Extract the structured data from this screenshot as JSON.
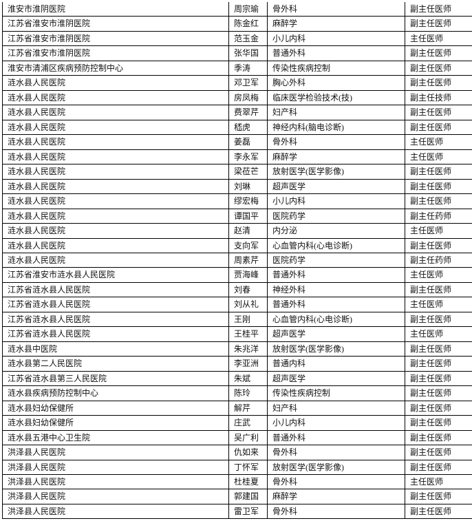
{
  "table": {
    "rows": [
      [
        "淮安市淮阴医院",
        "周宗瑜",
        "骨外科",
        "副主任医师"
      ],
      [
        "江苏省淮安市淮阴医院",
        "陈金红",
        "麻醉学",
        "副主任医师"
      ],
      [
        "江苏省淮安市淮阴医院",
        "范玉金",
        "小儿内科",
        "主任医师"
      ],
      [
        "江苏省淮安市淮阴医院",
        "张华国",
        "普通外科",
        "副主任医师"
      ],
      [
        "淮安市清浦区疾病预防控制中心",
        "季涛",
        "传染性疾病控制",
        "副主任医师"
      ],
      [
        "涟水县人民医院",
        "邓卫军",
        "胸心外科",
        "副主任医师"
      ],
      [
        "涟水县人民医院",
        "房凤梅",
        "临床医学检验技术(技)",
        "副主任技师"
      ],
      [
        "涟水县人民医院",
        "费翠芹",
        "妇产科",
        "副主任医师"
      ],
      [
        "涟水县人民医院",
        "嵇虎",
        "神经内科(脑电诊断)",
        "副主任医师"
      ],
      [
        "涟水县人民医院",
        "姜磊",
        "骨外科",
        "主任医师"
      ],
      [
        "涟水县人民医院",
        "李永军",
        "麻醉学",
        "主任医师"
      ],
      [
        "涟水县人民医院",
        "梁莅芒",
        "放射医学(医学影像)",
        "副主任医师"
      ],
      [
        "涟水县人民医院",
        "刘琳",
        "超声医学",
        "副主任医师"
      ],
      [
        "涟水县人民医院",
        "缪宏梅",
        "小儿内科",
        "副主任医师"
      ],
      [
        "涟水县人民医院",
        "谭国平",
        "医院药学",
        "副主任药师"
      ],
      [
        "涟水县人民医院",
        "赵清",
        "内分泌",
        "主任医师"
      ],
      [
        "涟水县人民医院",
        "支向军",
        "心血管内科(心电诊断)",
        "副主任医师"
      ],
      [
        "涟水县人民医院",
        "周素芹",
        "医院药学",
        "副主任药师"
      ],
      [
        "江苏省淮安市涟水县人民医院",
        "贾海峰",
        "普通外科",
        "主任医师"
      ],
      [
        "江苏省涟水县人民医院",
        "刘春",
        "神经外科",
        "副主任医师"
      ],
      [
        "江苏省涟水县人民医院",
        "刘从礼",
        "普通外科",
        "主任医师"
      ],
      [
        "江苏省涟水县人民医院",
        "王刚",
        "心血管内科(心电诊断)",
        "副主任医师"
      ],
      [
        "江苏省涟水县人民医院",
        "王桂平",
        "超声医学",
        "主任医师"
      ],
      [
        "涟水县中医院",
        "朱兆洋",
        "放射医学(医学影像)",
        "副主任医师"
      ],
      [
        "涟水县第二人民医院",
        "李亚洲",
        "普通内科",
        "副主任医师"
      ],
      [
        "江苏省涟水县第三人民医院",
        "朱斌",
        "超声医学",
        "副主任医师"
      ],
      [
        "涟水县疾病预防控制中心",
        "陈玲",
        "传染性疾病控制",
        "副主任医师"
      ],
      [
        "涟水县妇幼保健所",
        "解芹",
        "妇产科",
        "副主任医师"
      ],
      [
        "涟水县妇幼保健所",
        "庄武",
        "小儿内科",
        "副主任医师"
      ],
      [
        "涟水县五港中心卫生院",
        "吴广利",
        "普通外科",
        "副主任医师"
      ],
      [
        "洪泽县人民医院",
        "仇如来",
        "骨外科",
        "副主任医师"
      ],
      [
        "洪泽县人民医院",
        "丁怀军",
        "放射医学(医学影像)",
        "副主任医师"
      ],
      [
        "洪泽县人民医院",
        "杜桂夏",
        "骨外科",
        "主任医师"
      ],
      [
        "洪泽县人民医院",
        "郭建国",
        "麻醉学",
        "副主任医师"
      ],
      [
        "洪泽县人民医院",
        "雷卫军",
        "骨外科",
        "副主任医师"
      ]
    ]
  }
}
